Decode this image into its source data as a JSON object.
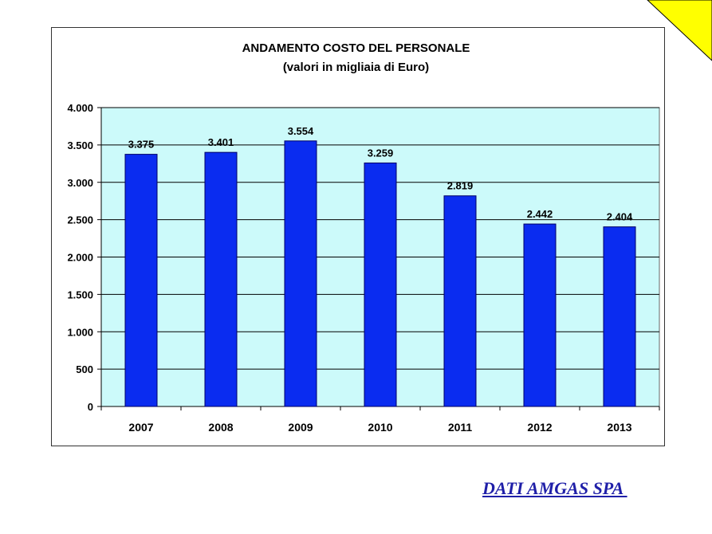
{
  "chart_data": {
    "type": "bar",
    "title": "ANDAMENTO COSTO DEL PERSONALE",
    "subtitle": "(valori in migliaia di Euro)",
    "categories": [
      "2007",
      "2008",
      "2009",
      "2010",
      "2011",
      "2012",
      "2013"
    ],
    "values": [
      3375,
      3401,
      3554,
      3259,
      2819,
      2442,
      2404
    ],
    "value_labels": [
      "3.375",
      "3.401",
      "3.554",
      "3.259",
      "2.819",
      "2.442",
      "2.404"
    ],
    "y_ticks": [
      0,
      500,
      1000,
      1500,
      2000,
      2500,
      3000,
      3500,
      4000
    ],
    "y_tick_labels": [
      "0",
      "500",
      "1.000",
      "1.500",
      "2.000",
      "2.500",
      "3.000",
      "3.500",
      "4.000"
    ],
    "ylim": [
      0,
      4000
    ],
    "xlabel": "",
    "ylabel": "",
    "grid": true,
    "legend": "none",
    "colors": {
      "bar": "#0a2cf0",
      "bar_edge": "#000066",
      "plot_bg": "#ccfafa",
      "grid": "#000000",
      "corner": "#ffff00"
    }
  },
  "footer": {
    "source": "DATI AMGAS SPA "
  }
}
